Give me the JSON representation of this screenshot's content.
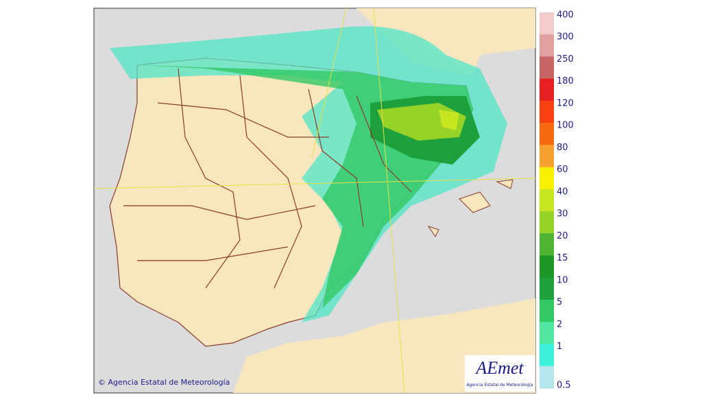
{
  "map": {
    "copyright": "© Agencia Estatal de Meteorología",
    "logo": {
      "name": "AEmet",
      "subtitle": "Agencia Estatal de Meteorología"
    },
    "legend": [
      {
        "label": "400",
        "color": "#f2cccc"
      },
      {
        "label": "300",
        "color": "#e0a0a0"
      },
      {
        "label": "250",
        "color": "#c86464"
      },
      {
        "label": "180",
        "color": "#e62020"
      },
      {
        "label": "120",
        "color": "#f84010"
      },
      {
        "label": "100",
        "color": "#f86a10"
      },
      {
        "label": "80",
        "color": "#f8a030"
      },
      {
        "label": "60",
        "color": "#f8f000"
      },
      {
        "label": "40",
        "color": "#c8e620"
      },
      {
        "label": "30",
        "color": "#96d228"
      },
      {
        "label": "20",
        "color": "#4cb432"
      },
      {
        "label": "15",
        "color": "#1e9628"
      },
      {
        "label": "10",
        "color": "#1ea03c"
      },
      {
        "label": "5",
        "color": "#32c864"
      },
      {
        "label": "2",
        "color": "#50e6a0"
      },
      {
        "label": "1",
        "color": "#3cf0dc"
      },
      {
        "label": "0.5",
        "color": "#b4e6ee"
      }
    ]
  }
}
